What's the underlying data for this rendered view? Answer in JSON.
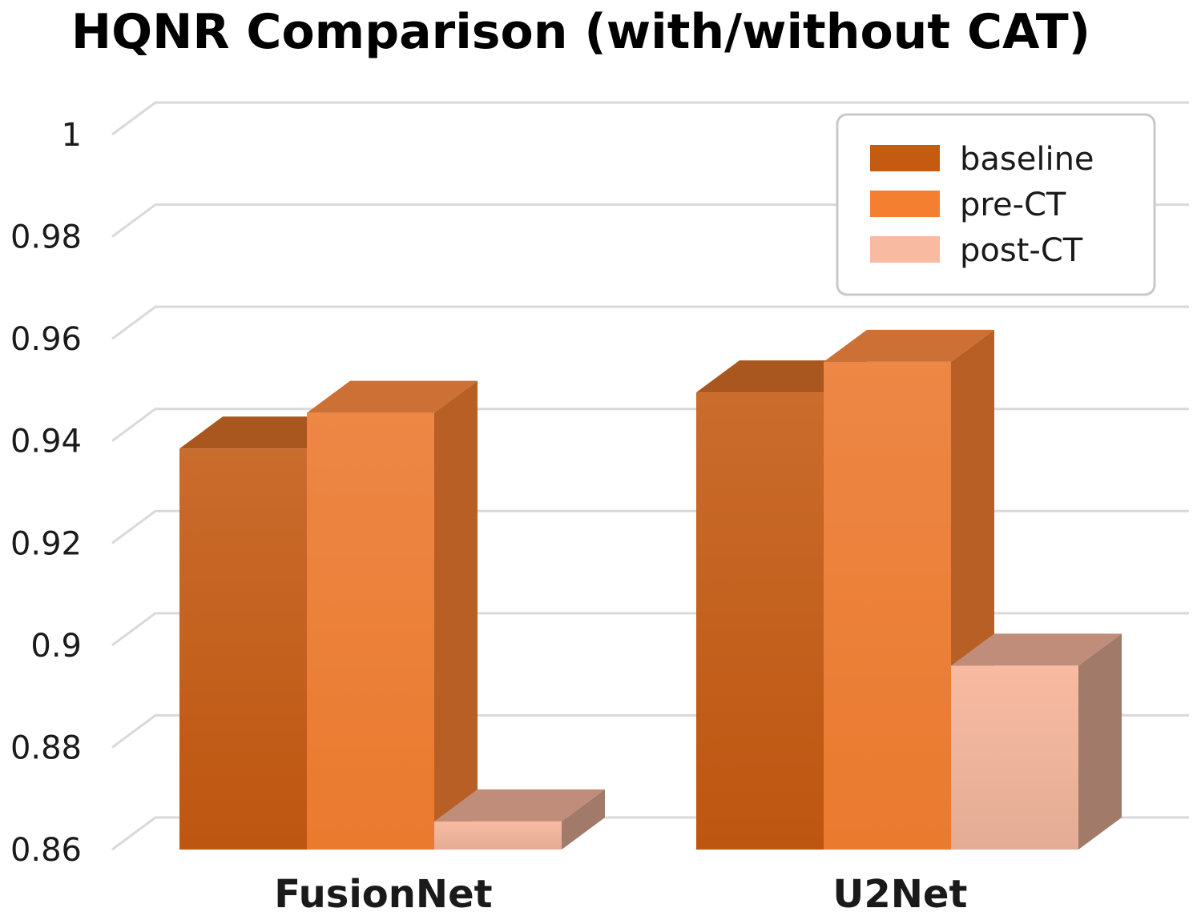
{
  "chart_data": {
    "type": "bar",
    "title": "HQNR Comparison (with/without CAT)",
    "xlabel": "",
    "ylabel": "",
    "categories": [
      "FusionNet",
      "U2Net"
    ],
    "series": [
      {
        "name": "baseline",
        "values": [
          0.9385,
          0.9495
        ],
        "color": "#C55A11"
      },
      {
        "name": "pre-CT",
        "values": [
          0.9455,
          0.9555
        ],
        "color": "#F47F30"
      },
      {
        "name": "post-CT",
        "values": [
          0.8655,
          0.896
        ],
        "color": "#F8BBA2"
      }
    ],
    "ylim": [
      0.86,
      1.0
    ],
    "yticks": [
      "0.86",
      "0.88",
      "0.9",
      "0.92",
      "0.94",
      "0.96",
      "0.98",
      "1"
    ],
    "grid": true,
    "legend_position": "top-right",
    "three_d": true
  }
}
